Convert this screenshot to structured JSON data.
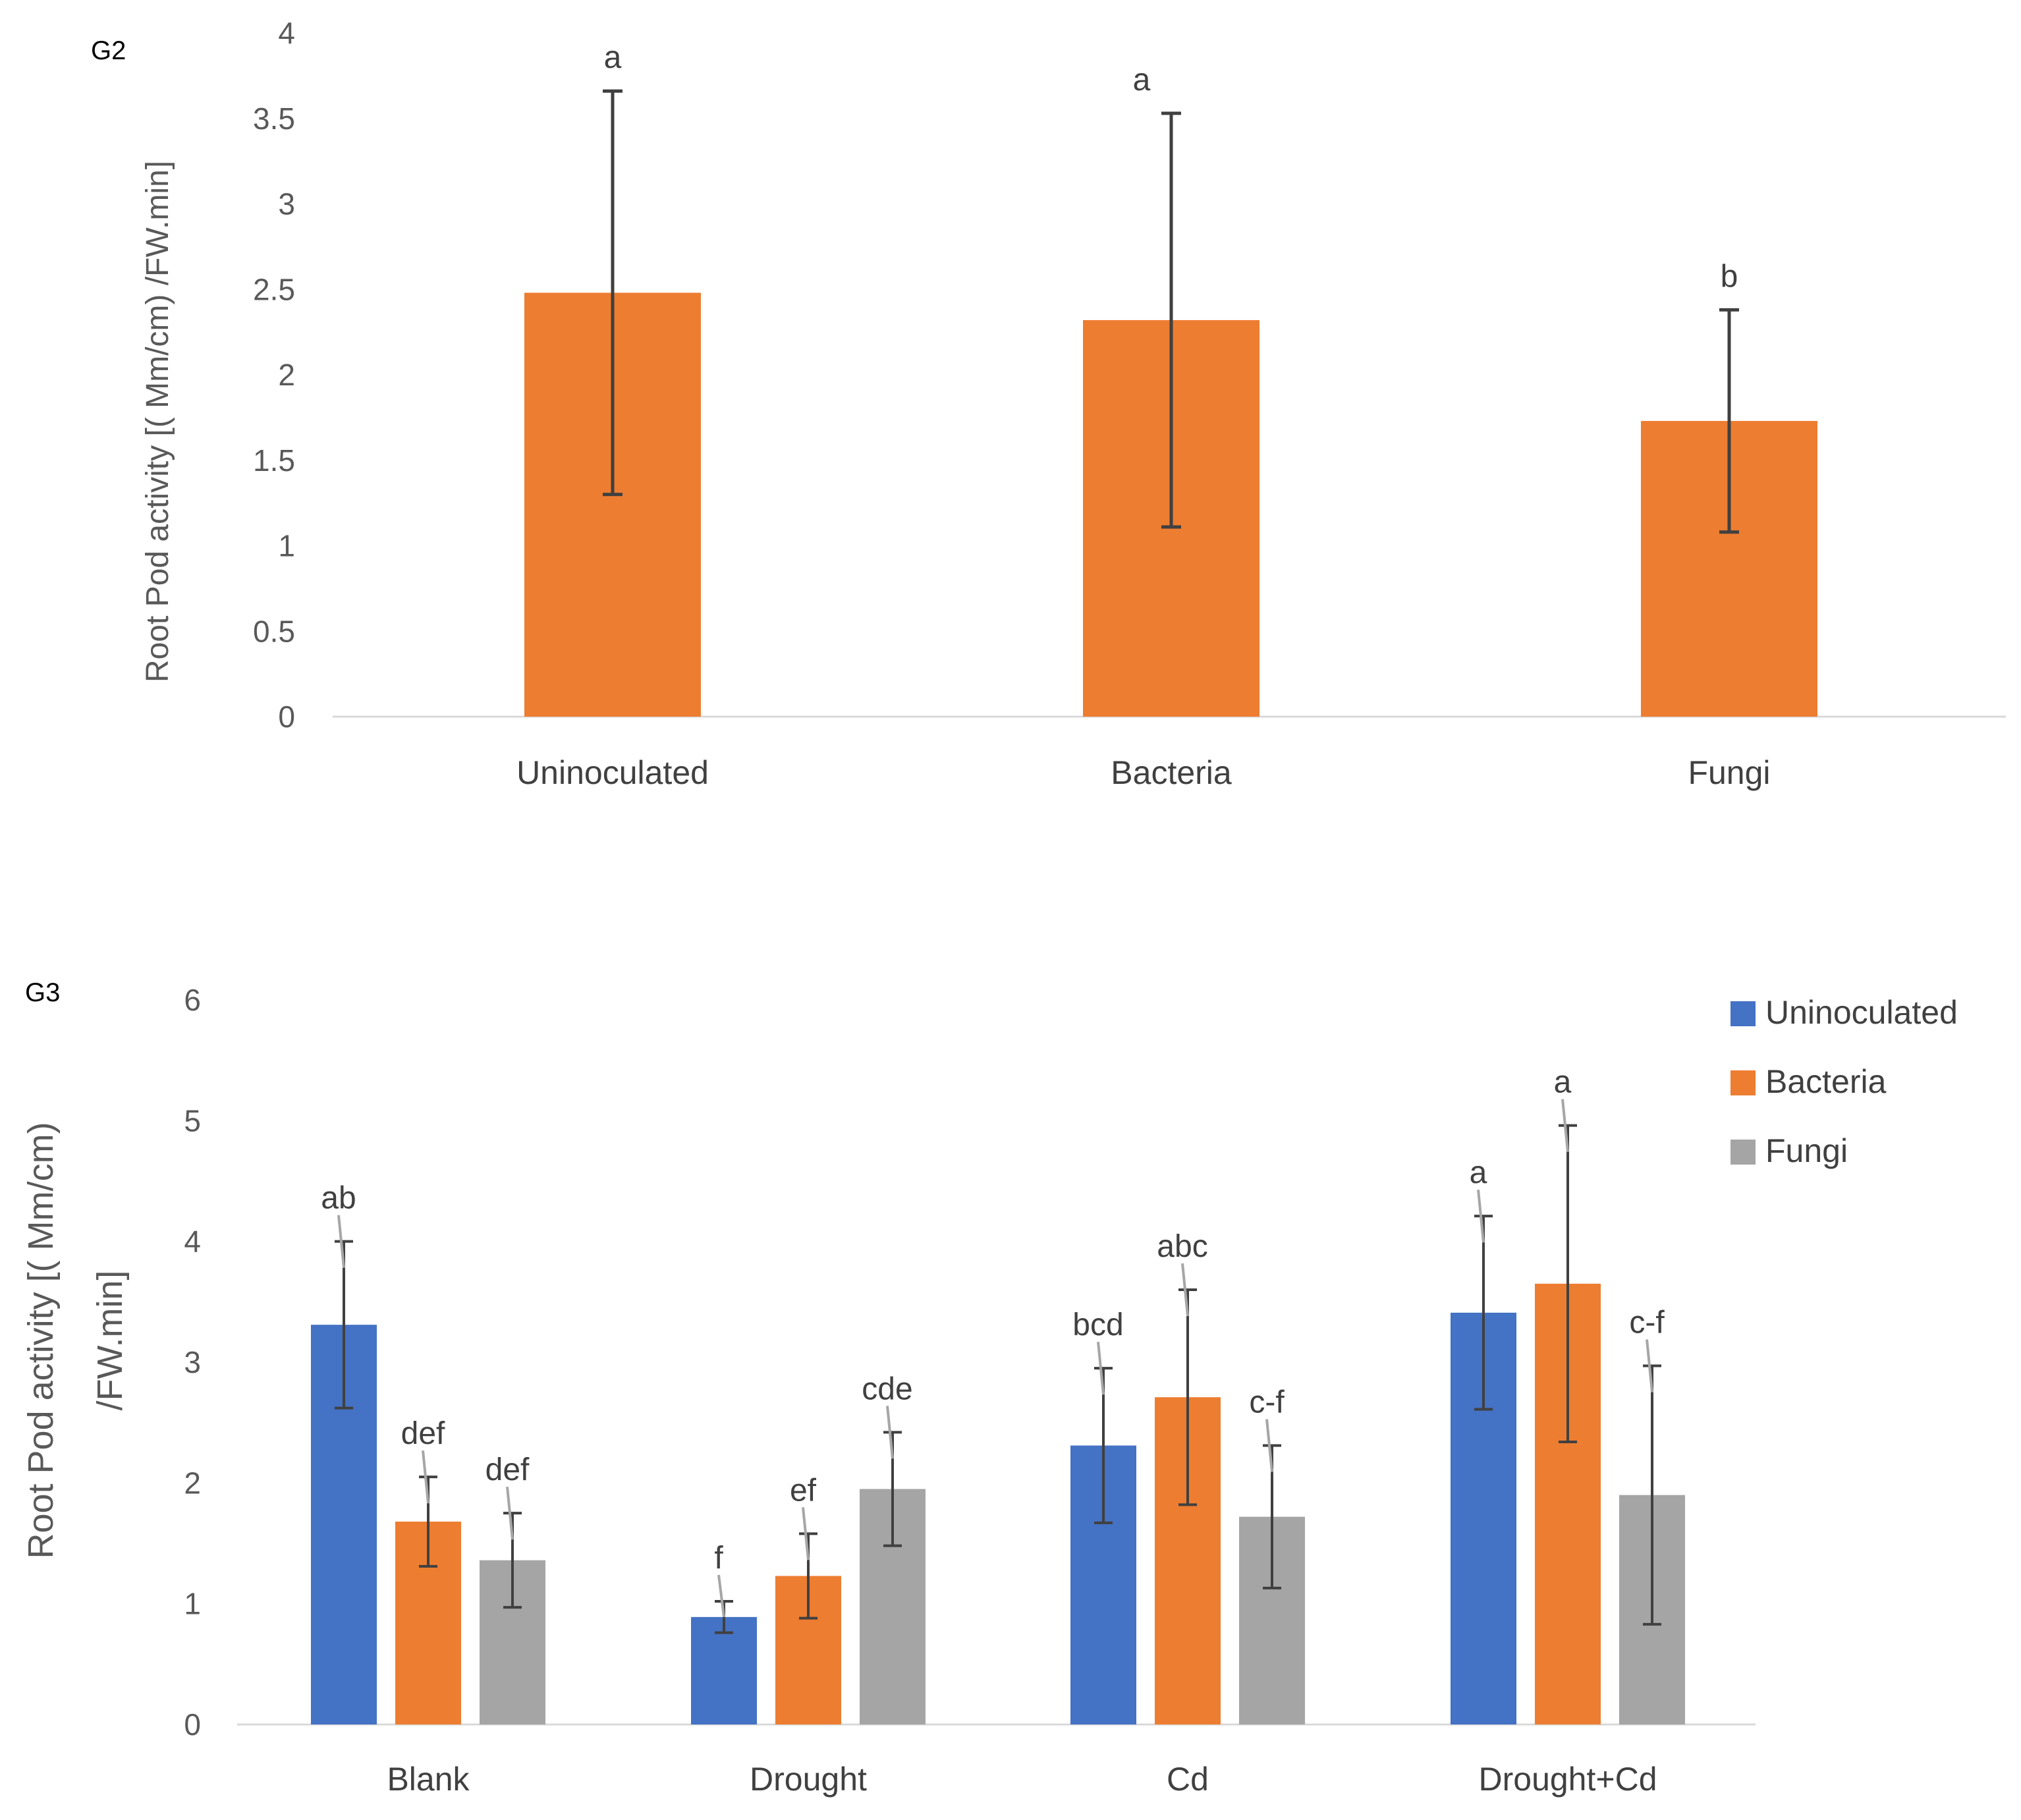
{
  "chart_data": [
    {
      "type": "bar",
      "panel_label": "G2",
      "categories": [
        "Uninoculated",
        "Bacteria",
        "Fungi"
      ],
      "values": [
        2.48,
        2.32,
        1.73
      ],
      "errors": [
        1.18,
        1.21,
        0.65
      ],
      "significance": [
        "a",
        "a",
        "b"
      ],
      "color": "#ED7D31",
      "ylabel": "Root Pod activity [( Mm/cm) /FW.min]",
      "ylim": [
        0,
        4
      ],
      "yticks": [
        "0",
        "0.5",
        "1",
        "1.5",
        "2",
        "2.5",
        "3",
        "3.5",
        "4"
      ],
      "ytick_values": [
        0,
        0.5,
        1,
        1.5,
        2,
        2.5,
        3,
        3.5,
        4
      ]
    },
    {
      "type": "bar",
      "panel_label": "G3",
      "categories": [
        "Blank",
        "Drought",
        "Cd",
        "Drought+Cd"
      ],
      "series": [
        {
          "name": "Uninoculated",
          "color": "#4472C4",
          "values": [
            3.31,
            0.89,
            2.31,
            3.41
          ],
          "errors": [
            0.69,
            0.13,
            0.64,
            0.8
          ],
          "significance": [
            "ab",
            "f",
            "bcd",
            "a"
          ]
        },
        {
          "name": "Bacteria",
          "color": "#ED7D31",
          "values": [
            1.68,
            1.23,
            2.71,
            3.65
          ],
          "errors": [
            0.37,
            0.35,
            0.89,
            1.31
          ],
          "significance": [
            "def",
            "ef",
            "abc",
            "a"
          ]
        },
        {
          "name": "Fungi",
          "color": "#A5A5A5",
          "values": [
            1.36,
            1.95,
            1.72,
            1.9
          ],
          "errors": [
            0.39,
            0.47,
            0.59,
            1.07
          ],
          "significance": [
            "def",
            "cde",
            "c-f",
            "c-f"
          ]
        }
      ],
      "ylabel_line1": "Root Pod activity [( Mm/cm)",
      "ylabel_line2": "/FW.min]",
      "ylim": [
        0,
        6
      ],
      "yticks": [
        "0",
        "1",
        "2",
        "3",
        "4",
        "5",
        "6"
      ],
      "ytick_values": [
        0,
        1,
        2,
        3,
        4,
        5,
        6
      ],
      "legend_position": "top-right"
    }
  ]
}
